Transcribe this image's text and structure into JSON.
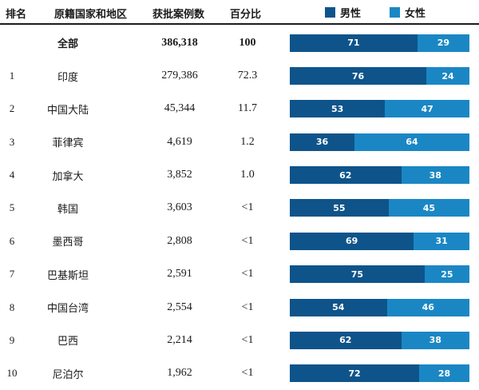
{
  "header": {
    "columns": [
      "排名",
      "原籍国家和地区",
      "获批案例数",
      "百分比"
    ]
  },
  "legend": {
    "male_label": "男性",
    "female_label": "女性"
  },
  "colors": {
    "male": "#0E548A",
    "female": "#1A87C4"
  },
  "rows": [
    {
      "rank": "",
      "country": "全部",
      "cases": "386,318",
      "percent": "100",
      "male": 71,
      "female": 29
    },
    {
      "rank": "1",
      "country": "印度",
      "cases": "279,386",
      "percent": "72.3",
      "male": 76,
      "female": 24
    },
    {
      "rank": "2",
      "country": "中国大陆",
      "cases": "45,344",
      "percent": "11.7",
      "male": 53,
      "female": 47
    },
    {
      "rank": "3",
      "country": "菲律宾",
      "cases": "4,619",
      "percent": "1.2",
      "male": 36,
      "female": 64
    },
    {
      "rank": "4",
      "country": "加拿大",
      "cases": "3,852",
      "percent": "1.0",
      "male": 62,
      "female": 38
    },
    {
      "rank": "5",
      "country": "韩国",
      "cases": "3,603",
      "percent": "<1",
      "male": 55,
      "female": 45
    },
    {
      "rank": "6",
      "country": "墨西哥",
      "cases": "2,808",
      "percent": "<1",
      "male": 69,
      "female": 31
    },
    {
      "rank": "7",
      "country": "巴基斯坦",
      "cases": "2,591",
      "percent": "<1",
      "male": 75,
      "female": 25
    },
    {
      "rank": "8",
      "country": "中国台湾",
      "cases": "2,554",
      "percent": "<1",
      "male": 54,
      "female": 46
    },
    {
      "rank": "9",
      "country": "巴西",
      "cases": "2,214",
      "percent": "<1",
      "male": 62,
      "female": 38
    },
    {
      "rank": "10",
      "country": "尼泊尔",
      "cases": "1,962",
      "percent": "<1",
      "male": 72,
      "female": 28
    }
  ],
  "chart_data": {
    "type": "bar",
    "orientation": "horizontal-stacked",
    "units": "percent",
    "categories": [
      "全部",
      "印度",
      "中国大陆",
      "菲律宾",
      "加拿大",
      "韩国",
      "墨西哥",
      "巴基斯坦",
      "中国台湾",
      "巴西",
      "尼泊尔"
    ],
    "series": [
      {
        "name": "男性",
        "color": "#0E548A",
        "values": [
          71,
          76,
          53,
          36,
          62,
          55,
          69,
          75,
          54,
          62,
          72
        ]
      },
      {
        "name": "女性",
        "color": "#1A87C4",
        "values": [
          29,
          24,
          47,
          64,
          38,
          45,
          31,
          25,
          46,
          38,
          28
        ]
      }
    ],
    "table_columns": [
      "排名",
      "原籍国家和地区",
      "获批案例数",
      "百分比"
    ],
    "table_rows": [
      [
        "",
        "全部",
        "386,318",
        "100"
      ],
      [
        "1",
        "印度",
        "279,386",
        "72.3"
      ],
      [
        "2",
        "中国大陆",
        "45,344",
        "11.7"
      ],
      [
        "3",
        "菲律宾",
        "4,619",
        "1.2"
      ],
      [
        "4",
        "加拿大",
        "3,852",
        "1.0"
      ],
      [
        "5",
        "韩国",
        "3,603",
        "<1"
      ],
      [
        "6",
        "墨西哥",
        "2,808",
        "<1"
      ],
      [
        "7",
        "巴基斯坦",
        "2,591",
        "<1"
      ],
      [
        "8",
        "中国台湾",
        "2,554",
        "<1"
      ],
      [
        "9",
        "巴西",
        "2,214",
        "<1"
      ],
      [
        "10",
        "尼泊尔",
        "1,962",
        "<1"
      ]
    ],
    "xlim": [
      0,
      100
    ],
    "legend_position": "top-right",
    "grid": false
  }
}
